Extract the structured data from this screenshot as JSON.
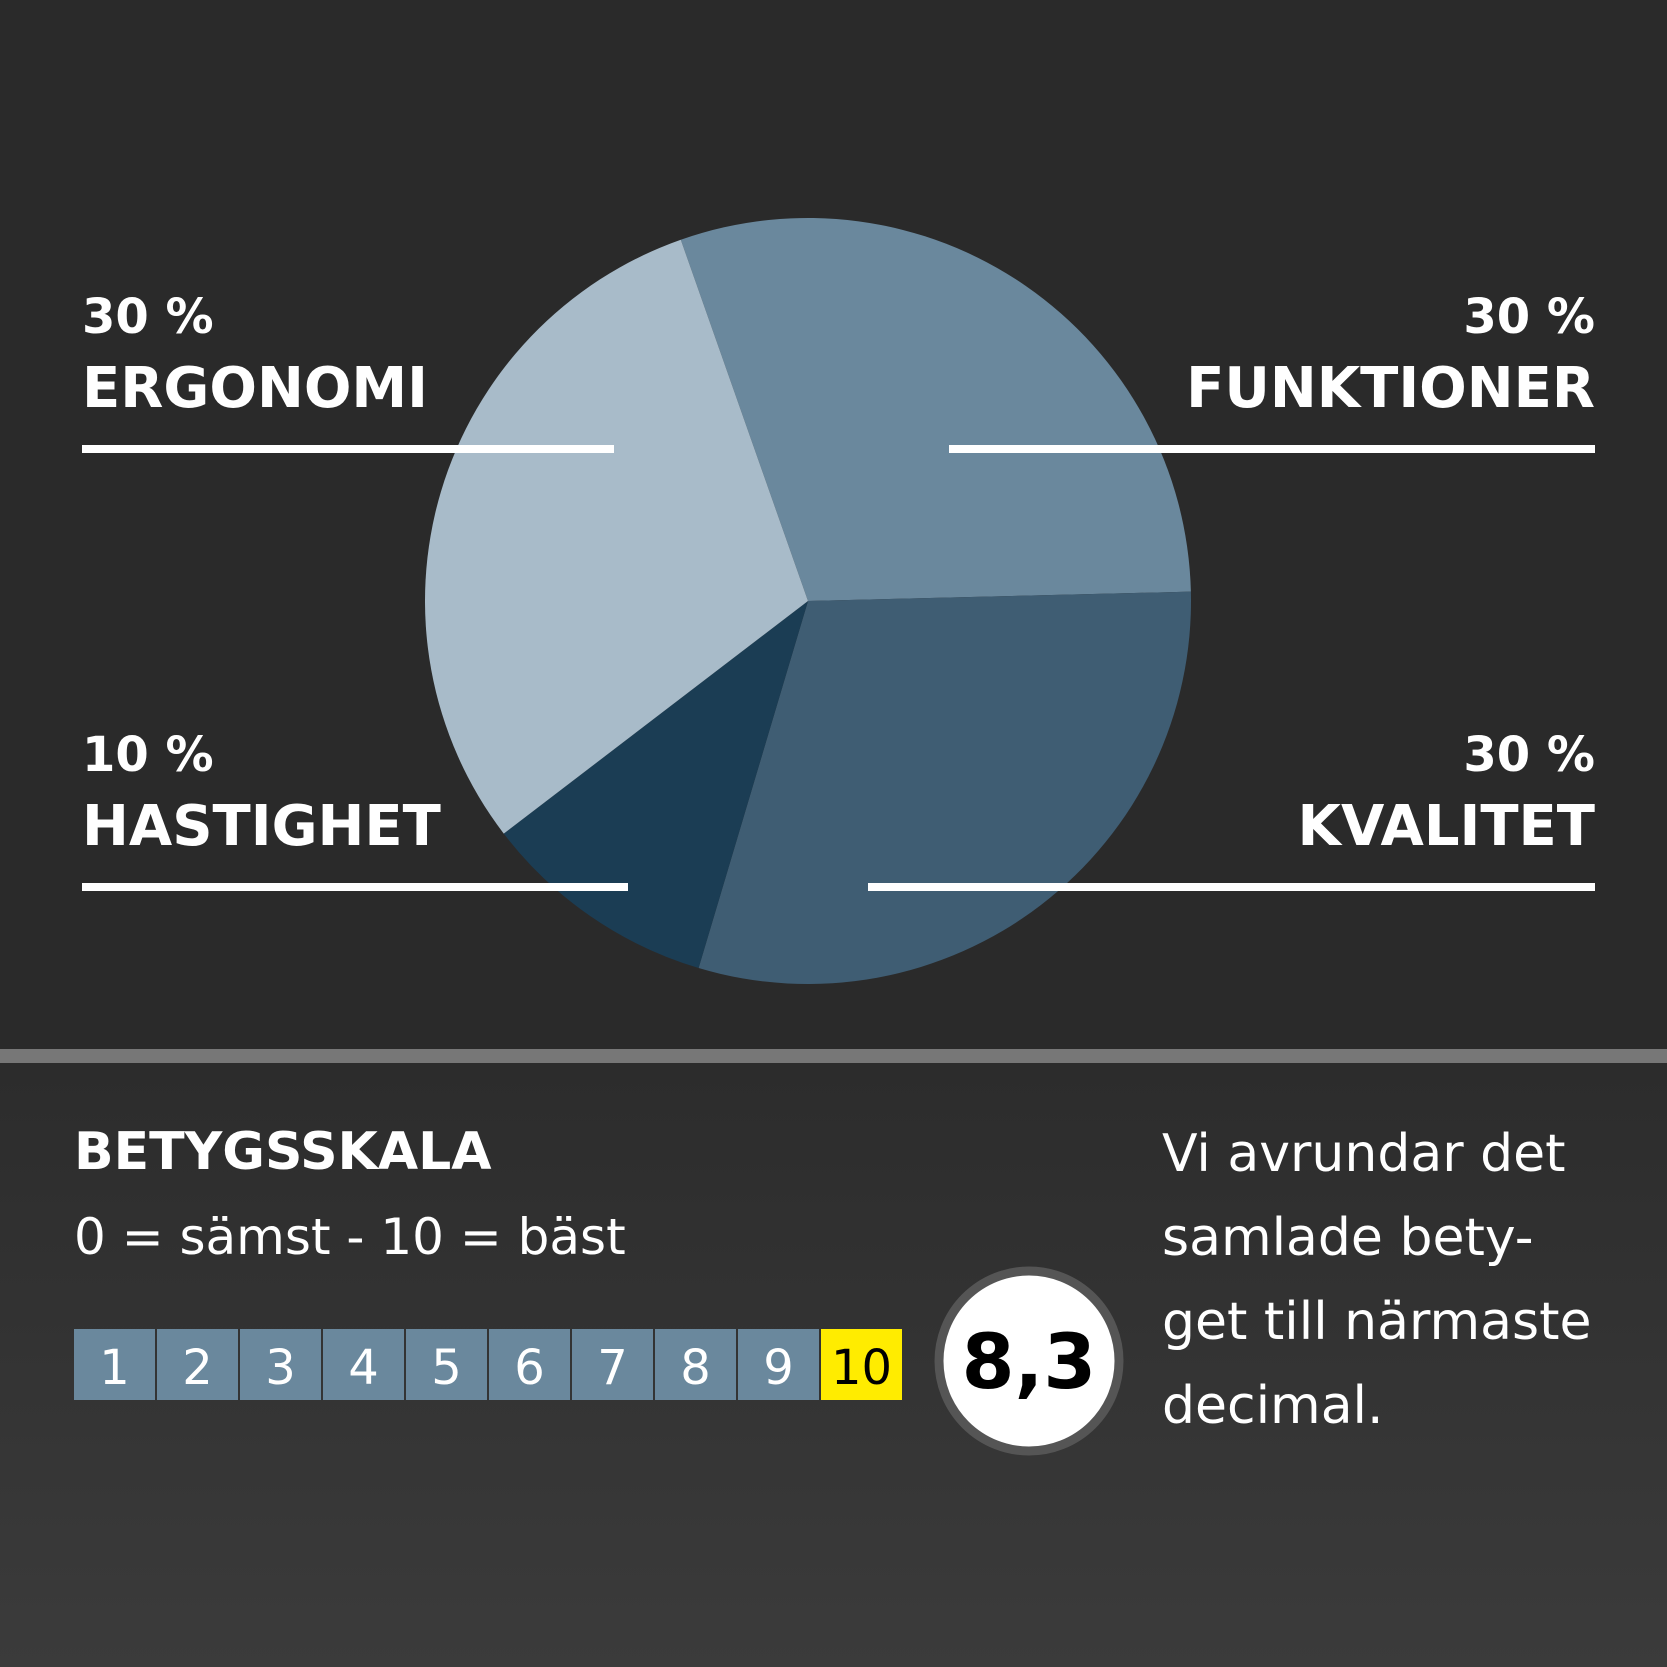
{
  "chart_data": {
    "type": "pie",
    "categories": [
      "FUNKTIONER",
      "KVALITET",
      "HASTIGHET",
      "ERGONOMI"
    ],
    "values": [
      30,
      30,
      10,
      30
    ],
    "value_labels": [
      "30 %",
      "30 %",
      "10 %",
      "30 %"
    ],
    "colors": [
      "#6a889d",
      "#3f5d73",
      "#1b3d54",
      "#a8bbc9"
    ]
  },
  "rating": {
    "title": "BETYGSSKALA",
    "subtitle": "0 = sämst - 10 = bäst",
    "scale": [
      {
        "label": "1",
        "color": "#6a889d"
      },
      {
        "label": "2",
        "color": "#6a889d"
      },
      {
        "label": "3",
        "color": "#6a889d"
      },
      {
        "label": "4",
        "color": "#6a889d"
      },
      {
        "label": "5",
        "color": "#6a889d"
      },
      {
        "label": "6",
        "color": "#6a889d"
      },
      {
        "label": "7",
        "color": "#6a889d"
      },
      {
        "label": "8",
        "color": "#6a889d"
      },
      {
        "label": "9",
        "color": "#6a889d"
      },
      {
        "label": "10",
        "color": "#ffec00"
      }
    ],
    "score": "8,3",
    "note": [
      "Vi  avrundar det",
      "samlade bety-",
      "get till närmaste",
      "decimal."
    ]
  }
}
